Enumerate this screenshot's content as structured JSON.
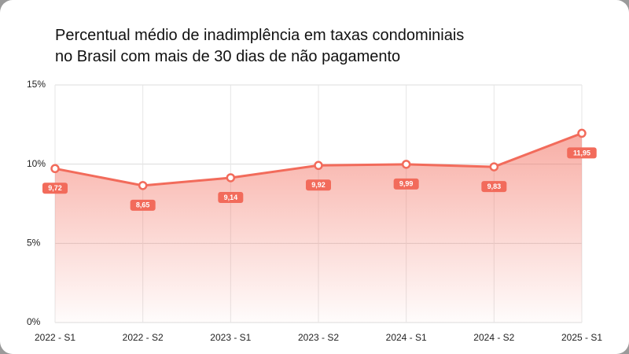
{
  "chart_data": {
    "type": "line",
    "title": "Percentual médio de inadimplência em taxas condominiais",
    "subtitle": "no Brasil com mais de 30 dias de não pagamento",
    "categories": [
      "2022 - S1",
      "2022 - S2",
      "2023 - S1",
      "2023 - S2",
      "2024 - S1",
      "2024 - S2",
      "2025 - S1"
    ],
    "series": [
      {
        "color": "#f26b5b",
        "values": [
          9.72,
          8.65,
          9.14,
          9.92,
          9.99,
          9.83,
          11.95
        ],
        "value_labels": [
          "9,72",
          "8,65",
          "9,14",
          "9,92",
          "9,99",
          "9,83",
          "11,95"
        ]
      }
    ],
    "ylim": [
      0,
      15
    ],
    "yticks": [
      {
        "value": 0,
        "label": "0%"
      },
      {
        "value": 5,
        "label": "5%"
      },
      {
        "value": 10,
        "label": "10%"
      },
      {
        "value": 15,
        "label": "15%"
      }
    ],
    "grid": true
  }
}
